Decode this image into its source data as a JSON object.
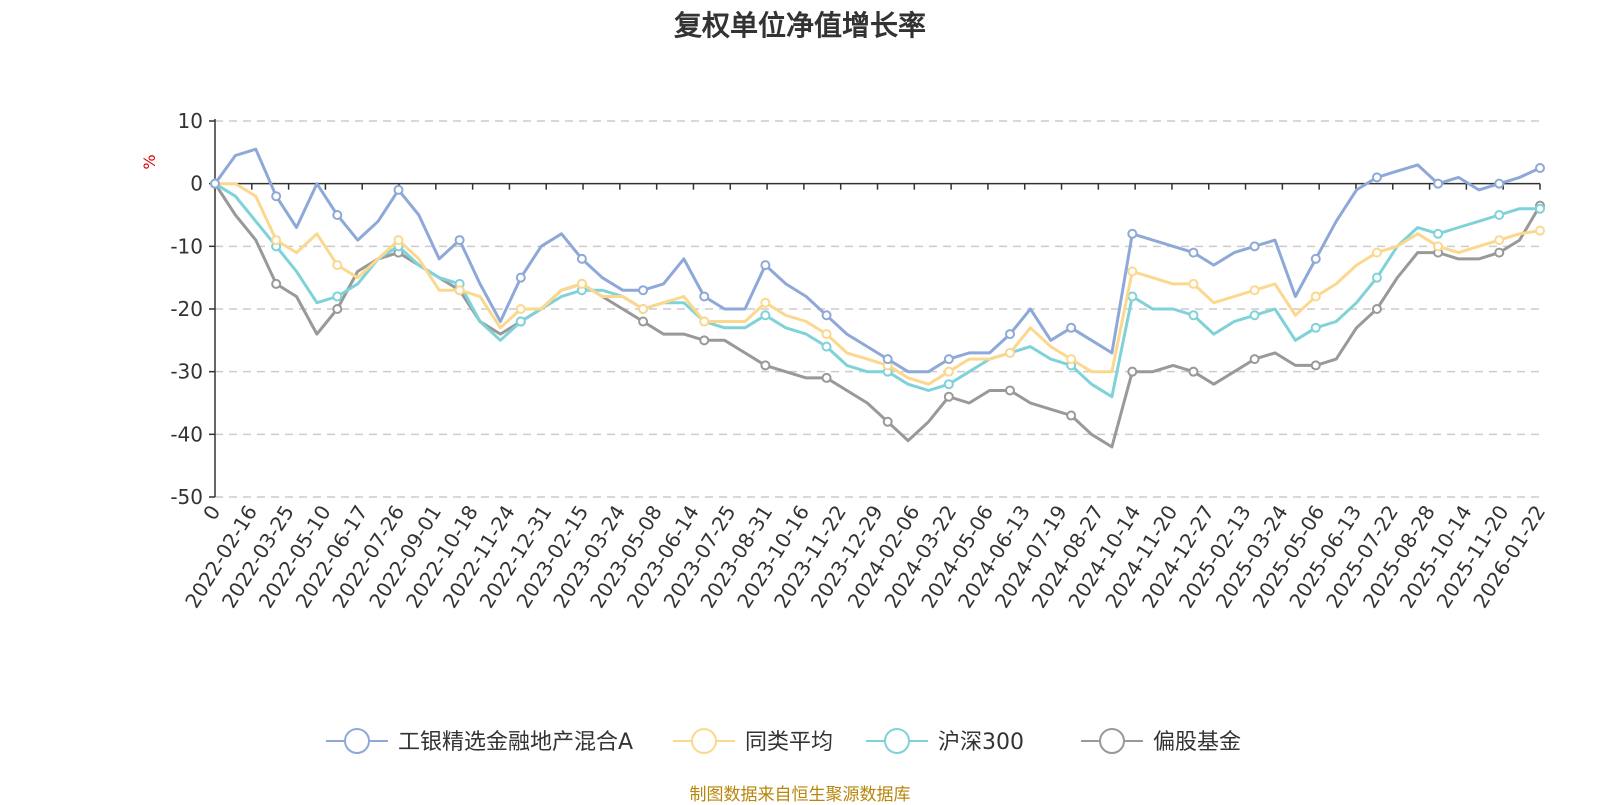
{
  "chart_data": {
    "type": "line",
    "title": "复权单位净值增长率",
    "ylabel": "%",
    "ylim": [
      -50,
      10
    ],
    "yticks": [
      "10",
      "0",
      "-10",
      "-20",
      "-30",
      "-40",
      "-50"
    ],
    "x_tick_labels": [
      "0",
      "2022-02-16",
      "2022-03-25",
      "2022-05-10",
      "2022-06-17",
      "2022-07-26",
      "2022-09-01",
      "2022-10-18",
      "2022-11-24",
      "2022-12-31",
      "2023-02-15",
      "2023-03-24",
      "2023-05-08",
      "2023-06-14",
      "2023-07-25",
      "2023-08-31",
      "2023-10-16",
      "2023-11-22",
      "2023-12-29",
      "2024-02-06",
      "2024-03-22",
      "2024-05-06",
      "2024-06-13",
      "2024-07-19",
      "2024-08-27",
      "2024-10-14",
      "2024-11-20",
      "2024-12-27",
      "2025-02-13",
      "2025-03-24",
      "2025-05-06",
      "2025-06-13",
      "2025-07-22",
      "2025-08-28",
      "2025-10-14",
      "2025-11-20",
      "2026-01-22"
    ],
    "grid": true,
    "legend_position": "bottom",
    "series": [
      {
        "name": "工银精选金融地产混合A",
        "color": "#8ea9d8",
        "values": [
          0,
          4.5,
          5.5,
          -2,
          -7,
          0,
          -5,
          -9,
          -6,
          -1,
          -5,
          -12,
          -9,
          -16,
          -22,
          -15,
          -10,
          -8,
          -12,
          -15,
          -17,
          -17,
          -16,
          -12,
          -18,
          -20,
          -20,
          -13,
          -16,
          -18,
          -21,
          -24,
          -26,
          -28,
          -30,
          -30,
          -28,
          -27,
          -27,
          -24,
          -20,
          -25,
          -23,
          -25,
          -27,
          -8,
          -9,
          -10,
          -11,
          -13,
          -11,
          -10,
          -9,
          -18,
          -12,
          -6,
          -1,
          1,
          2,
          3,
          0,
          1,
          -1,
          0,
          1,
          2.5
        ]
      },
      {
        "name": "同类平均",
        "color": "#fcd88f",
        "values": [
          0,
          0,
          -2,
          -9,
          -11,
          -8,
          -13,
          -15,
          -12,
          -9,
          -12,
          -17,
          -17,
          -18,
          -23,
          -20,
          -20,
          -17,
          -16,
          -18,
          -18,
          -20,
          -19,
          -18,
          -22,
          -22,
          -22,
          -19,
          -21,
          -22,
          -24,
          -27,
          -28,
          -29,
          -31,
          -32,
          -30,
          -28,
          -28,
          -27,
          -23,
          -26,
          -28,
          -30,
          -30,
          -14,
          -15,
          -16,
          -16,
          -19,
          -18,
          -17,
          -16,
          -21,
          -18,
          -16,
          -13,
          -11,
          -10,
          -8,
          -10,
          -11,
          -10,
          -9,
          -8,
          -7.5
        ]
      },
      {
        "name": "沪深300",
        "color": "#7fd3d8",
        "values": [
          0,
          -2,
          -6,
          -10,
          -14,
          -19,
          -18,
          -16,
          -12,
          -10,
          -13,
          -15,
          -16,
          -22,
          -25,
          -22,
          -20,
          -18,
          -17,
          -17,
          -18,
          -20,
          -19,
          -19,
          -22,
          -23,
          -23,
          -21,
          -23,
          -24,
          -26,
          -29,
          -30,
          -30,
          -32,
          -33,
          -32,
          -30,
          -28,
          -27,
          -26,
          -28,
          -29,
          -32,
          -34,
          -18,
          -20,
          -20,
          -21,
          -24,
          -22,
          -21,
          -20,
          -25,
          -23,
          -22,
          -19,
          -15,
          -10,
          -7,
          -8,
          -7,
          -6,
          -5,
          -4,
          -4
        ]
      },
      {
        "name": "偏股基金",
        "color": "#999999",
        "values": [
          0,
          -5,
          -9,
          -16,
          -18,
          -24,
          -20,
          -14,
          -12,
          -11,
          -13,
          -15,
          -17,
          -22,
          -24,
          -22,
          -20,
          -17,
          -16,
          -18,
          -20,
          -22,
          -24,
          -24,
          -25,
          -25,
          -27,
          -29,
          -30,
          -31,
          -31,
          -33,
          -35,
          -38,
          -41,
          -38,
          -34,
          -35,
          -33,
          -33,
          -35,
          -36,
          -37,
          -40,
          -42,
          -30,
          -30,
          -29,
          -30,
          -32,
          -30,
          -28,
          -27,
          -29,
          -29,
          -28,
          -23,
          -20,
          -15,
          -11,
          -11,
          -12,
          -12,
          -11,
          -9,
          -3.5
        ]
      }
    ]
  },
  "footer": "制图数据来自恒生聚源数据库"
}
